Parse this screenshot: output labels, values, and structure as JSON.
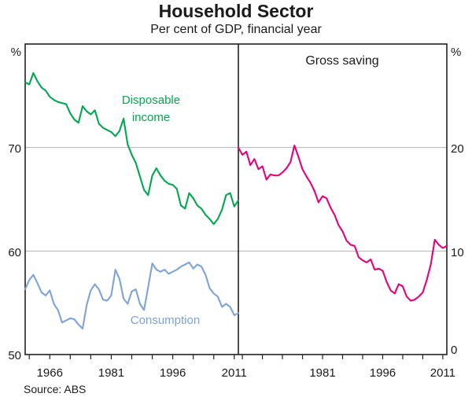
{
  "header": {
    "title": "Household Sector",
    "subtitle": "Per cent of GDP, financial year"
  },
  "source_note": "Source: ABS",
  "colors": {
    "disposable_income": "#00A850",
    "consumption": "#7DA3D9",
    "gross_saving": "#E6007E",
    "gridline": "#b3b3b3",
    "frame": "#222222"
  },
  "labels": {
    "disposable_line1": "Disposable",
    "disposable_line2": "income",
    "consumption": "Consumption",
    "gross_saving": "Gross saving"
  },
  "left_axis": {
    "unit": "%",
    "tick_labels": [
      "70",
      "60",
      "50"
    ]
  },
  "right_axis": {
    "unit": "%",
    "tick_labels": [
      "20",
      "10",
      "0"
    ]
  },
  "chart_data": [
    {
      "type": "line",
      "panel": "left",
      "xlim": [
        1960,
        2012
      ],
      "ylim": [
        50,
        80
      ],
      "y_gridlines": [
        60,
        70
      ],
      "y_axis_side": "left",
      "x_labeled_ticks": [
        1966,
        1981,
        1996,
        2011
      ],
      "x_minor_ticks": [
        1961,
        1966,
        1971,
        1976,
        1981,
        1986,
        1991,
        1996,
        2001,
        2006,
        2011
      ],
      "years": [
        1960,
        1961,
        1962,
        1963,
        1964,
        1965,
        1966,
        1967,
        1968,
        1969,
        1970,
        1971,
        1972,
        1973,
        1974,
        1975,
        1976,
        1977,
        1978,
        1979,
        1980,
        1981,
        1982,
        1983,
        1984,
        1985,
        1986,
        1987,
        1988,
        1989,
        1990,
        1991,
        1992,
        1993,
        1994,
        1995,
        1996,
        1997,
        1998,
        1999,
        2000,
        2001,
        2002,
        2003,
        2004,
        2005,
        2006,
        2007,
        2008,
        2009,
        2010,
        2011,
        2012
      ],
      "series": [
        {
          "name": "Disposable income",
          "color_key": "disposable_income",
          "values": [
            76.3,
            76.1,
            77.2,
            76.4,
            75.8,
            75.5,
            74.9,
            74.6,
            74.4,
            74.3,
            74.2,
            73.3,
            72.7,
            72.4,
            74.0,
            73.5,
            73.2,
            73.6,
            72.3,
            71.9,
            71.7,
            71.5,
            71.1,
            71.6,
            72.8,
            70.3,
            69.3,
            68.5,
            67.2,
            65.9,
            65.4,
            67.3,
            68.0,
            67.3,
            66.8,
            66.5,
            66.4,
            66.0,
            64.4,
            64.1,
            65.6,
            65.1,
            64.4,
            64.1,
            63.5,
            63.1,
            62.6,
            63.1,
            64.0,
            65.4,
            65.6,
            64.3,
            64.9
          ]
        },
        {
          "name": "Consumption",
          "color_key": "consumption",
          "values": [
            56.3,
            57.2,
            57.7,
            56.9,
            56.0,
            55.7,
            56.2,
            54.9,
            54.3,
            53.1,
            53.3,
            53.5,
            53.4,
            52.9,
            52.5,
            54.8,
            56.2,
            56.8,
            56.3,
            55.3,
            55.2,
            55.7,
            58.2,
            57.3,
            55.4,
            54.9,
            56.1,
            56.3,
            54.9,
            54.3,
            56.5,
            58.8,
            58.2,
            58.0,
            58.2,
            57.8,
            58.0,
            58.2,
            58.5,
            58.7,
            58.9,
            58.3,
            58.7,
            58.5,
            57.7,
            56.4,
            55.9,
            55.6,
            54.6,
            54.9,
            54.6,
            53.8,
            54.0
          ]
        }
      ]
    },
    {
      "type": "line",
      "panel": "right",
      "annotation": "Gross saving",
      "xlim": [
        1960,
        2012
      ],
      "ylim": [
        0,
        30
      ],
      "y_gridlines": [
        10,
        20
      ],
      "y_axis_side": "right",
      "x_labeled_ticks": [
        1981,
        1996,
        2011
      ],
      "x_minor_ticks": [
        1961,
        1966,
        1971,
        1976,
        1981,
        1986,
        1991,
        1996,
        2001,
        2006,
        2011
      ],
      "years": [
        1960,
        1961,
        1962,
        1963,
        1964,
        1965,
        1966,
        1967,
        1968,
        1969,
        1970,
        1971,
        1972,
        1973,
        1974,
        1975,
        1976,
        1977,
        1978,
        1979,
        1980,
        1981,
        1982,
        1983,
        1984,
        1985,
        1986,
        1987,
        1988,
        1989,
        1990,
        1991,
        1992,
        1993,
        1994,
        1995,
        1996,
        1997,
        1998,
        1999,
        2000,
        2001,
        2002,
        2003,
        2004,
        2005,
        2006,
        2007,
        2008,
        2009,
        2010,
        2011,
        2012
      ],
      "series": [
        {
          "name": "Gross saving",
          "color_key": "gross_saving",
          "values": [
            20.0,
            19.3,
            19.6,
            18.3,
            18.9,
            17.9,
            18.2,
            16.9,
            17.4,
            17.3,
            17.3,
            17.6,
            18.0,
            18.6,
            20.2,
            19.1,
            17.9,
            17.2,
            16.6,
            15.8,
            14.7,
            15.3,
            15.1,
            14.2,
            13.5,
            12.5,
            11.9,
            11.0,
            10.6,
            10.5,
            9.4,
            9.1,
            8.9,
            9.2,
            8.2,
            8.3,
            8.1,
            7.0,
            6.2,
            5.9,
            6.8,
            6.6,
            5.6,
            5.2,
            5.3,
            5.6,
            6.0,
            7.2,
            8.7,
            11.1,
            10.6,
            10.3,
            10.5
          ]
        }
      ]
    }
  ]
}
